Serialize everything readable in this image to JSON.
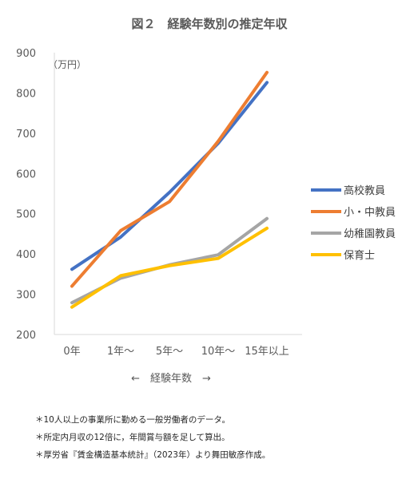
{
  "chart_data": {
    "type": "line",
    "title": "図２　経験年数別の推定年収",
    "unit_label": "（万円）",
    "xlabel": "←　経験年数　→",
    "categories": [
      "0年",
      "1年～",
      "5年～",
      "10年～",
      "15年以上"
    ],
    "ylim": [
      200,
      900
    ],
    "yticks": [
      200,
      300,
      400,
      500,
      600,
      700,
      800,
      900
    ],
    "grid": false,
    "legend_position": "right",
    "series": [
      {
        "name": "高校教員",
        "color": "#4472c4",
        "values": [
          362,
          442,
          553,
          675,
          826
        ]
      },
      {
        "name": "小・中教員",
        "color": "#ed7d31",
        "values": [
          320,
          458,
          530,
          680,
          851
        ]
      },
      {
        "name": "幼稚園教員",
        "color": "#a5a5a5",
        "values": [
          279,
          340,
          373,
          398,
          488
        ]
      },
      {
        "name": "保育士",
        "color": "#ffc000",
        "values": [
          268,
          346,
          371,
          389,
          464
        ]
      }
    ]
  },
  "notes": [
    "＊10人以上の事業所に勤める一般労働者のデータ。",
    "＊所定内月収の12倍に，年間賞与額を足して算出。",
    "＊厚労省『賃金構造基本統計』（2023年）より舞田敏彦作成。"
  ]
}
